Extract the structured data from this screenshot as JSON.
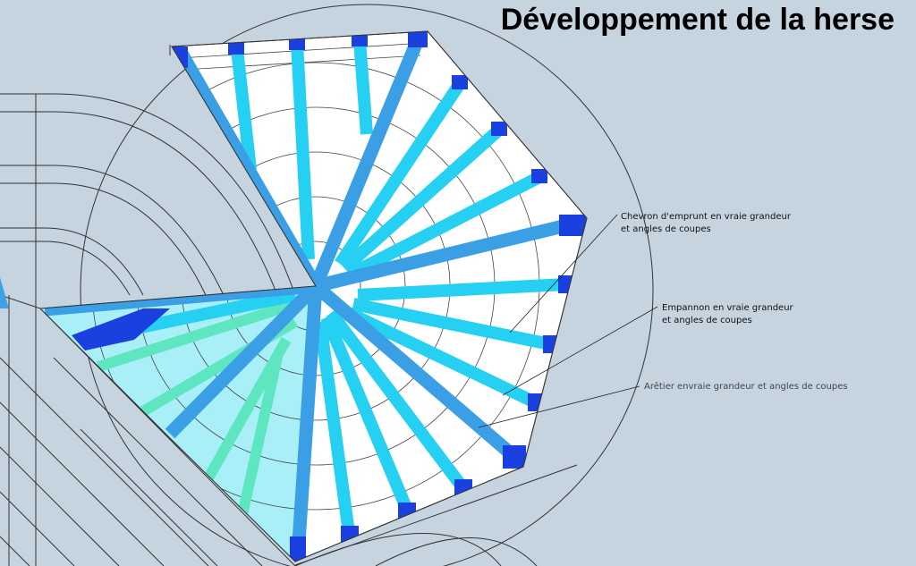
{
  "title": "Développement de la herse",
  "annotations": [
    {
      "lines": [
        "Chevron d'emprunt en vraie grandeur",
        "et angles de coupes"
      ]
    },
    {
      "lines": [
        "Empannon en vraie grandeur",
        "et angles de coupes"
      ]
    },
    {
      "lines": [
        "Arêtier envraie grandeur et angles de coupes"
      ]
    }
  ]
}
